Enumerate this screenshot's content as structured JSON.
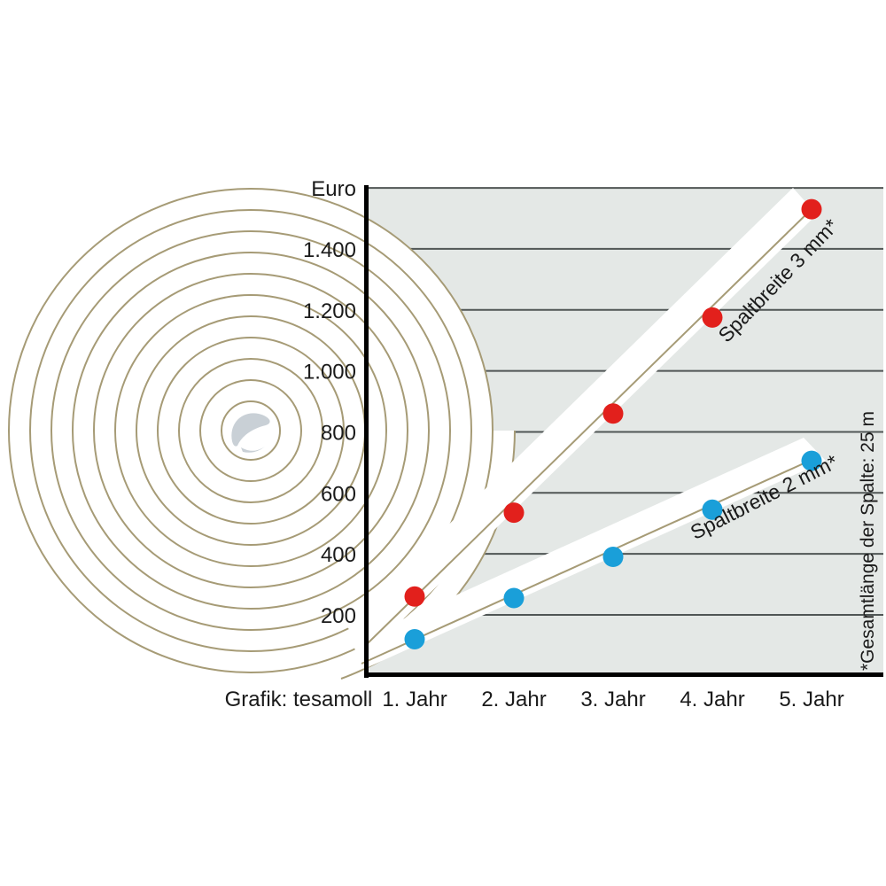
{
  "chart_data": {
    "type": "scatter",
    "title": "",
    "categories": [
      "1. Jahr",
      "2. Jahr",
      "3. Jahr",
      "4. Jahr",
      "5. Jahr"
    ],
    "series": [
      {
        "name": "Spaltbreite 3 mm*",
        "color": "#e2201c",
        "values": [
          260,
          535,
          860,
          1175,
          1530
        ]
      },
      {
        "name": "Spaltbreite 2 mm*",
        "color": "#1a9fd9",
        "values": [
          120,
          255,
          390,
          545,
          705
        ]
      }
    ],
    "y_axis": {
      "unit_label": "Euro",
      "ticks": [
        200,
        400,
        600,
        800,
        1000,
        1200,
        1400
      ],
      "tick_labels": [
        "200",
        "400",
        "600",
        "800",
        "1.000",
        "1.200",
        "1.400"
      ],
      "range": [
        0,
        1600
      ]
    },
    "grid": true,
    "legend_position": "labels-rotated-along-lines",
    "footnote": "*Gesamtlänge der Spalte: 25 m",
    "credit": "Grafik: tesamoll"
  },
  "colors": {
    "plot_background": "#e4e8e6",
    "gridline": "#505655",
    "axis": "#000000",
    "tape_line": "#a69b76",
    "band": "#ffffff",
    "series_red": "#e2201c",
    "series_blue": "#1a9fd9",
    "center_curl": "#c9d0d6",
    "text": "#1a1a1a"
  }
}
